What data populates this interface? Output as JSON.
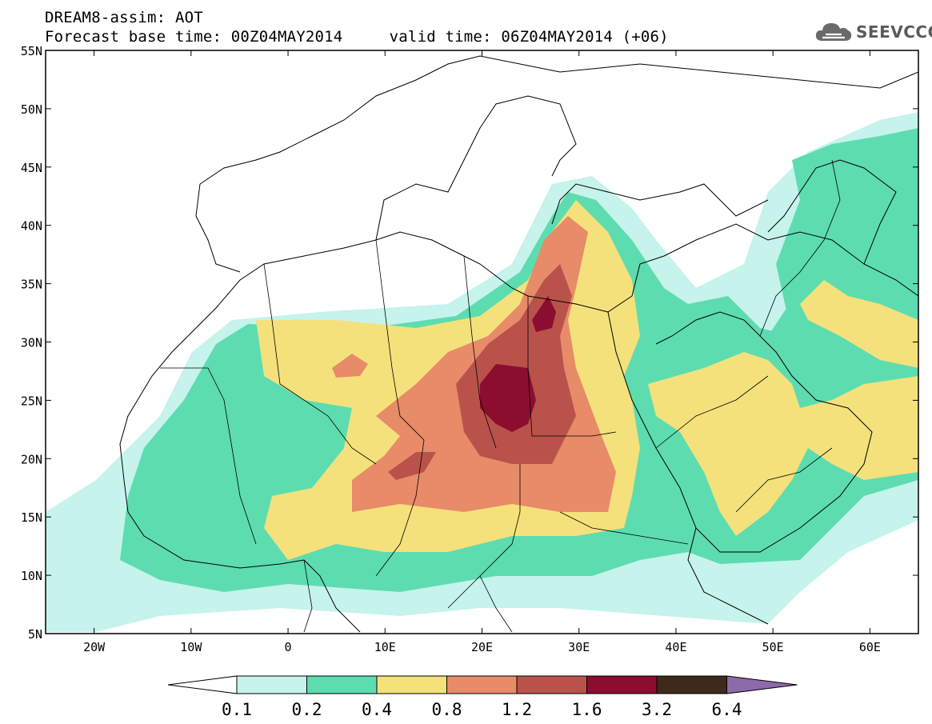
{
  "header": {
    "title": "DREAM8-assim: AOT",
    "base_time": "Forecast base time: 00Z04MAY2014",
    "valid_time": "valid time: 06Z04MAY2014 (+06)"
  },
  "logo": {
    "text": "SEEVCCC",
    "icon": "cloud-icon"
  },
  "map": {
    "lat_labels": [
      "55N",
      "50N",
      "45N",
      "40N",
      "35N",
      "30N",
      "25N",
      "20N",
      "15N",
      "10N",
      "5N"
    ],
    "lon_labels": [
      "20W",
      "10W",
      "0",
      "10E",
      "20E",
      "30E",
      "40E",
      "50E",
      "60E"
    ],
    "lat_range": [
      5,
      55
    ],
    "lon_range": [
      -25,
      65
    ]
  },
  "colorbar": {
    "ticks": [
      "0.1",
      "0.2",
      "0.4",
      "0.8",
      "1.2",
      "1.6",
      "3.2",
      "6.4"
    ],
    "colors": [
      "#ffffff",
      "#c6f3ec",
      "#5ddcb0",
      "#f4e17b",
      "#e88b68",
      "#b9524b",
      "#8b0d2f",
      "#3e2a1a",
      "#8d6aa8"
    ]
  }
}
